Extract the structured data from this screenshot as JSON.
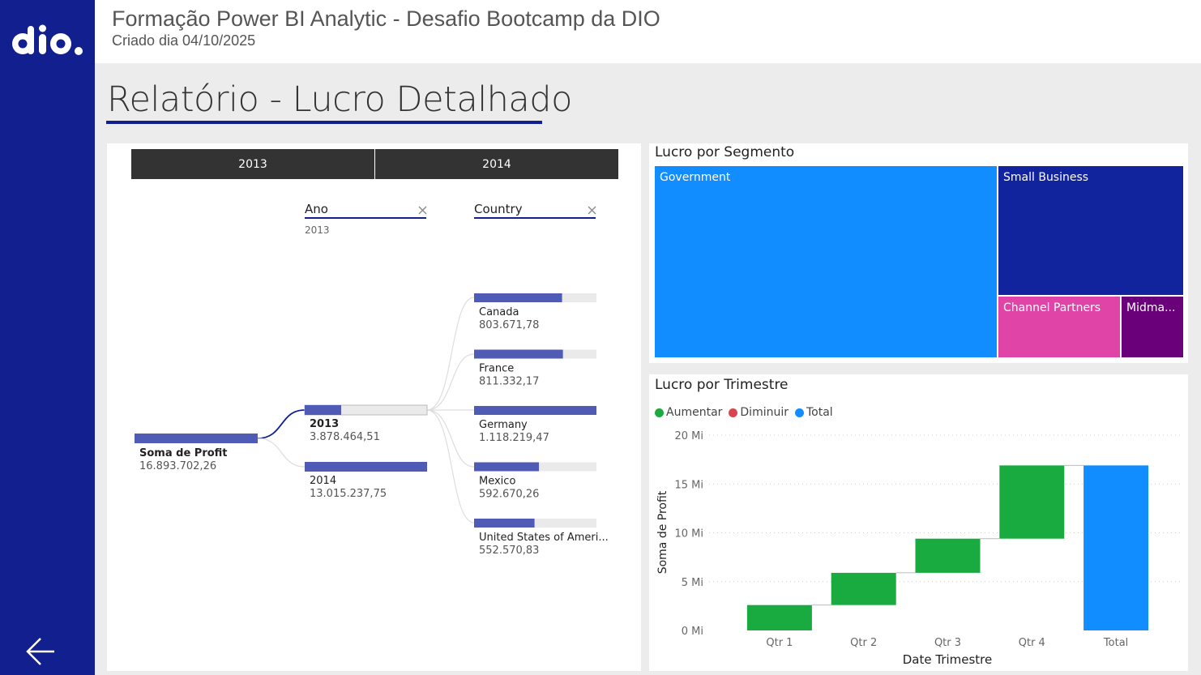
{
  "header": {
    "title": "Formação Power BI Analytic - Desafio Bootcamp da DIO",
    "subtitle": "Criado dia 04/10/2025"
  },
  "logo": {
    "text": "dio."
  },
  "page_title": "Relatório - Lucro Detalhado",
  "slicer": {
    "options": [
      "2013",
      "2014"
    ]
  },
  "decomposition": {
    "root": {
      "label": "Soma de Profit",
      "value": "16.893.702,26",
      "fraction": 1.0
    },
    "levels": [
      {
        "label": "Ano",
        "selected": "2013"
      },
      {
        "label": "Country",
        "selected": ""
      }
    ],
    "years": [
      {
        "label": "2013",
        "value": "3.878.464,51",
        "fraction": 0.298,
        "selected": true
      },
      {
        "label": "2014",
        "value": "13.015.237,75",
        "fraction": 1.0,
        "selected": false
      }
    ],
    "countries": [
      {
        "label": "Canada",
        "value": "803.671,78",
        "fraction": 0.719
      },
      {
        "label": "France",
        "value": "811.332,17",
        "fraction": 0.726
      },
      {
        "label": "Germany",
        "value": "1.118.219,47",
        "fraction": 1.0
      },
      {
        "label": "Mexico",
        "value": "592.670,26",
        "fraction": 0.53
      },
      {
        "label": "United States of Ameri...",
        "value": "552.570,83",
        "fraction": 0.494
      }
    ]
  },
  "treemap": {
    "title": "Lucro por Segmento",
    "segments": [
      {
        "label": "Government",
        "color": "#118dff"
      },
      {
        "label": "Small Business",
        "color": "#12239e"
      },
      {
        "label": "Channel Partners",
        "color": "#e044a7"
      },
      {
        "label": "Midma...",
        "color": "#6b007b"
      }
    ]
  },
  "waterfall": {
    "title": "Lucro por Trimestre",
    "legend": [
      {
        "label": "Aumentar",
        "color": "#1aab40"
      },
      {
        "label": "Diminuir",
        "color": "#d64550"
      },
      {
        "label": "Total",
        "color": "#118dff"
      }
    ],
    "ylabel": "Soma de Profit",
    "xlabel": "Date Trimestre",
    "y_ticks": [
      "0 Mi",
      "5 Mi",
      "10 Mi",
      "15 Mi",
      "20 Mi"
    ]
  },
  "chart_data": {
    "type": "bar",
    "subtype": "waterfall",
    "title": "Lucro por Trimestre",
    "xlabel": "Date Trimestre",
    "ylabel": "Soma de Profit",
    "ylim": [
      0,
      20
    ],
    "unit": "Mi",
    "categories": [
      "Qtr 1",
      "Qtr 2",
      "Qtr 3",
      "Qtr 4",
      "Total"
    ],
    "values": [
      2.6,
      3.3,
      3.5,
      7.5,
      16.9
    ],
    "kinds": [
      "Aumentar",
      "Aumentar",
      "Aumentar",
      "Aumentar",
      "Total"
    ],
    "grid": true,
    "legend_position": "top-left"
  }
}
